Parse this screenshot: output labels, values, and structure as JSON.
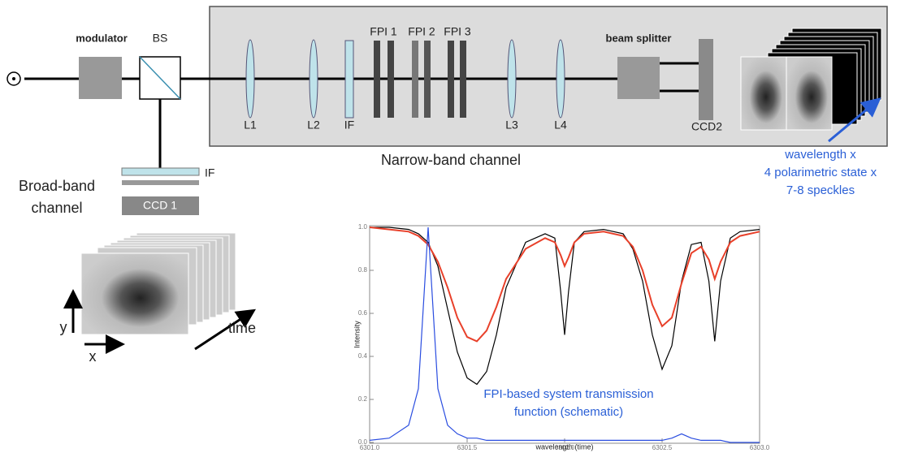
{
  "diagram": {
    "modulator": "modulator",
    "bs": "BS",
    "fpi1": "FPI 1",
    "fpi2": "FPI 2",
    "fpi3": "FPI 3",
    "beam_splitter": "beam splitter",
    "l1": "L1",
    "l2": "L2",
    "if_nb": "IF",
    "l3": "L3",
    "l4": "L4",
    "ccd2": "CCD2",
    "narrow_band": "Narrow-band channel",
    "stack_note": [
      "wavelength x",
      "4 polarimetric state x",
      "7-8 speckles"
    ],
    "if_bb": "IF",
    "broad_band": [
      "Broad-band",
      "channel"
    ],
    "ccd1": "CCD 1",
    "axis_y": "y",
    "axis_x": "x",
    "axis_time": "time"
  },
  "chart_data": {
    "type": "line",
    "ylabel": "Intensity",
    "xlabel": "wavelength (time)",
    "annotation": [
      "FPI-based system transmission",
      "function (schematic)"
    ],
    "xlim": [
      6301.0,
      6303.0
    ],
    "xticks": [
      {
        "value": 6301,
        "label": "6301.0"
      },
      6301.5,
      {
        "value": 6302,
        "label": "6302.0"
      },
      6302.5,
      {
        "value": 6303,
        "label": "6303.0"
      }
    ],
    "ylim": [
      0,
      1
    ],
    "yticks": [
      {
        "value": 0,
        "label": "0.0"
      },
      0.2,
      0.4,
      0.6,
      0.8,
      {
        "value": 1,
        "label": "1.0"
      }
    ],
    "x": [
      6301.0,
      6301.1,
      6301.2,
      6301.25,
      6301.3,
      6301.35,
      6301.4,
      6301.45,
      6301.5,
      6301.55,
      6301.6,
      6301.65,
      6301.7,
      6301.8,
      6301.9,
      6301.95,
      6301.98,
      6302.0,
      6302.02,
      6302.05,
      6302.1,
      6302.2,
      6302.3,
      6302.35,
      6302.4,
      6302.45,
      6302.5,
      6302.55,
      6302.6,
      6302.65,
      6302.7,
      6302.74,
      6302.77,
      6302.8,
      6302.85,
      6302.9,
      6303.0
    ],
    "series": [
      {
        "color": "#000000",
        "values": [
          1.0,
          1.0,
          0.99,
          0.97,
          0.93,
          0.82,
          0.62,
          0.42,
          0.3,
          0.27,
          0.33,
          0.5,
          0.72,
          0.93,
          0.97,
          0.95,
          0.7,
          0.5,
          0.7,
          0.93,
          0.98,
          0.99,
          0.97,
          0.9,
          0.75,
          0.5,
          0.34,
          0.45,
          0.75,
          0.92,
          0.93,
          0.75,
          0.47,
          0.75,
          0.95,
          0.98,
          0.99
        ]
      },
      {
        "color": "#e8402a",
        "values": [
          1.0,
          0.99,
          0.98,
          0.96,
          0.92,
          0.84,
          0.72,
          0.58,
          0.49,
          0.47,
          0.52,
          0.63,
          0.76,
          0.9,
          0.95,
          0.93,
          0.87,
          0.82,
          0.86,
          0.93,
          0.97,
          0.98,
          0.96,
          0.91,
          0.8,
          0.64,
          0.54,
          0.58,
          0.74,
          0.88,
          0.91,
          0.85,
          0.76,
          0.84,
          0.93,
          0.96,
          0.98
        ]
      },
      {
        "color": "#2a4de0",
        "values": [
          0.01,
          0.02,
          0.08,
          0.25,
          1.0,
          0.25,
          0.08,
          0.04,
          0.02,
          0.02,
          0.01,
          0.01,
          0.01,
          0.01,
          0.01,
          0.01,
          0.01,
          0.01,
          0.01,
          0.01,
          0.01,
          0.01,
          0.01,
          0.01,
          0.01,
          0.01,
          0.01,
          0.02,
          0.04,
          0.02,
          0.01,
          0.01,
          0.01,
          0.01,
          0.0,
          0.0,
          0.0
        ]
      }
    ]
  }
}
